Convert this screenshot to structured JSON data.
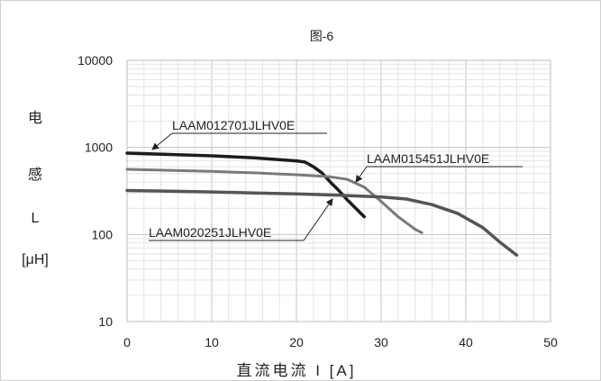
{
  "chart_data": {
    "type": "line",
    "title": "图-6",
    "xlabel": "直流电流 I [A]",
    "ylabel": [
      "电",
      "感",
      "L",
      "[μH]"
    ],
    "xlim": [
      0,
      50
    ],
    "ylim": [
      10,
      10000
    ],
    "yscale": "log",
    "grid": true,
    "xticks": [
      "0",
      "10",
      "20",
      "30",
      "40",
      "50"
    ],
    "yticks": [
      "10",
      "100",
      "1000",
      "10000"
    ],
    "series": [
      {
        "name": "LAAM012701JLHV0E",
        "color": "#1c1c1c",
        "x": [
          0,
          5,
          10,
          15,
          20,
          21,
          22,
          23,
          24,
          25,
          26,
          27,
          28
        ],
        "y": [
          860,
          830,
          800,
          760,
          700,
          680,
          600,
          510,
          400,
          320,
          250,
          200,
          160
        ]
      },
      {
        "name": "LAAM015451JLHV0E",
        "color": "#7a7a7a",
        "x": [
          0,
          5,
          10,
          15,
          20,
          24,
          26,
          28,
          30,
          32,
          34,
          34.8
        ],
        "y": [
          560,
          545,
          530,
          510,
          485,
          460,
          430,
          350,
          240,
          160,
          115,
          105
        ]
      },
      {
        "name": "LAAM020251JLHV0E",
        "color": "#555555",
        "x": [
          0,
          5,
          10,
          15,
          20,
          25,
          30,
          33,
          36,
          39,
          42,
          44,
          46
        ],
        "y": [
          320,
          315,
          308,
          300,
          292,
          282,
          270,
          255,
          220,
          175,
          120,
          82,
          58
        ]
      }
    ]
  }
}
